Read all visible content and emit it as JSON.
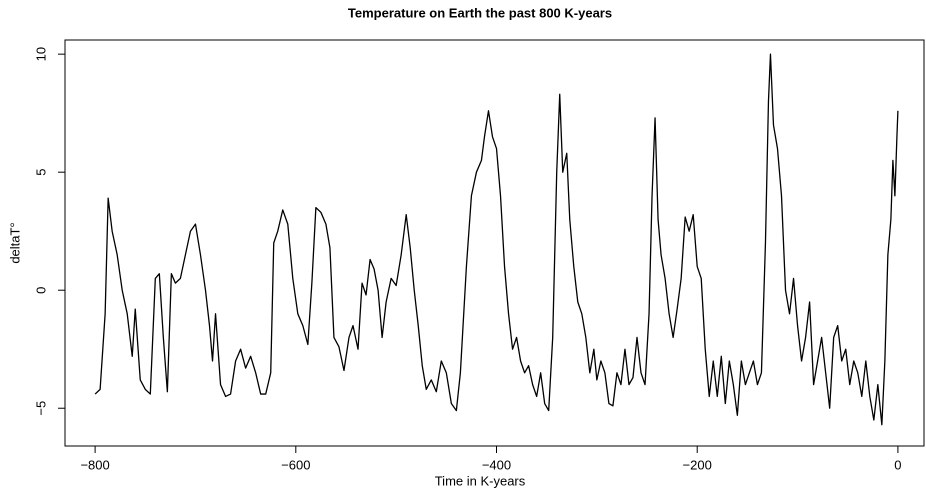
{
  "chart_data": {
    "type": "line",
    "title": "Temperature on Earth the past 800 K-years",
    "xlabel": "Time in K-years",
    "ylabel": "deltaT°",
    "color": "#000000",
    "xlim": [
      -830,
      26
    ],
    "ylim": [
      -6.6,
      10.6
    ],
    "xticks": [
      {
        "value": -800,
        "label": "−800"
      },
      {
        "value": -600,
        "label": "−600"
      },
      {
        "value": -400,
        "label": "−400"
      },
      {
        "value": -200,
        "label": "−200"
      },
      0
    ],
    "yticks": [
      {
        "value": -5,
        "label": "−5"
      },
      0,
      5,
      10
    ],
    "x": [
      -800,
      -795,
      -790,
      -787,
      -783,
      -778,
      -773,
      -768,
      -763,
      -760,
      -755,
      -750,
      -745,
      -740,
      -736,
      -732,
      -728,
      -724,
      -720,
      -715,
      -710,
      -705,
      -700,
      -695,
      -690,
      -686,
      -683,
      -680,
      -675,
      -670,
      -665,
      -660,
      -655,
      -650,
      -645,
      -640,
      -635,
      -630,
      -625,
      -622,
      -618,
      -613,
      -608,
      -603,
      -598,
      -593,
      -588,
      -584,
      -580,
      -575,
      -570,
      -566,
      -562,
      -557,
      -552,
      -547,
      -543,
      -538,
      -534,
      -530,
      -526,
      -522,
      -518,
      -514,
      -510,
      -505,
      -500,
      -495,
      -490,
      -486,
      -482,
      -478,
      -474,
      -470,
      -465,
      -460,
      -455,
      -450,
      -445,
      -440,
      -436,
      -430,
      -425,
      -420,
      -415,
      -412,
      -408,
      -404,
      -400,
      -396,
      -392,
      -388,
      -384,
      -380,
      -376,
      -372,
      -368,
      -364,
      -360,
      -356,
      -352,
      -348,
      -344,
      -340,
      -337,
      -334,
      -330,
      -327,
      -323,
      -319,
      -315,
      -311,
      -307,
      -303,
      -300,
      -296,
      -292,
      -288,
      -284,
      -280,
      -276,
      -272,
      -268,
      -264,
      -260,
      -256,
      -252,
      -248,
      -245,
      -242,
      -239,
      -236,
      -232,
      -228,
      -224,
      -220,
      -216,
      -212,
      -208,
      -204,
      -200,
      -196,
      -192,
      -188,
      -184,
      -180,
      -176,
      -172,
      -168,
      -164,
      -160,
      -156,
      -152,
      -148,
      -144,
      -140,
      -136,
      -132,
      -129,
      -127,
      -124,
      -120,
      -116,
      -112,
      -108,
      -104,
      -100,
      -96,
      -92,
      -88,
      -84,
      -80,
      -76,
      -72,
      -68,
      -64,
      -60,
      -56,
      -52,
      -48,
      -44,
      -40,
      -36,
      -32,
      -28,
      -24,
      -20,
      -16,
      -13,
      -10,
      -7,
      -5,
      -3,
      -1,
      0
    ],
    "values": [
      -4.4,
      -4.2,
      -1,
      3.9,
      2.5,
      1.5,
      0,
      -1,
      -2.8,
      -0.8,
      -3.8,
      -4.2,
      -4.4,
      0.5,
      0.7,
      -2,
      -4.3,
      0.7,
      0.3,
      0.5,
      1.5,
      2.5,
      2.8,
      1.5,
      0,
      -1.5,
      -3,
      -1,
      -4,
      -4.5,
      -4.4,
      -3,
      -2.5,
      -3.3,
      -2.8,
      -3.5,
      -4.4,
      -4.4,
      -3.5,
      2,
      2.5,
      3.4,
      2.8,
      0.5,
      -1,
      -1.5,
      -2.3,
      0.3,
      3.5,
      3.3,
      2.8,
      1.8,
      -2,
      -2.4,
      -3.4,
      -2,
      -1.5,
      -2.5,
      0.3,
      -0.2,
      1.3,
      0.9,
      0,
      -2,
      -0.5,
      0.5,
      0.2,
      1.5,
      3.2,
      1.8,
      0,
      -1.5,
      -3.2,
      -4.2,
      -3.8,
      -4.3,
      -3,
      -3.5,
      -4.8,
      -5.1,
      -3.5,
      1,
      4,
      5,
      5.5,
      6.5,
      7.6,
      6.5,
      6,
      4,
      1,
      -1,
      -2.5,
      -2,
      -3,
      -3.5,
      -3.2,
      -4,
      -4.5,
      -3.5,
      -4.8,
      -5.1,
      -2,
      5,
      8.3,
      5,
      5.8,
      3,
      1,
      -0.5,
      -1,
      -2,
      -3.5,
      -2.5,
      -3.8,
      -3,
      -3.5,
      -4.8,
      -4.9,
      -3.5,
      -4,
      -2.5,
      -4,
      -3.7,
      -2,
      -3.5,
      -4,
      -1,
      4,
      7.3,
      3,
      1.5,
      0.5,
      -1,
      -2,
      -0.8,
      0.5,
      3.1,
      2.5,
      3.2,
      1,
      0.5,
      -2.5,
      -4.5,
      -3,
      -4.5,
      -2.8,
      -4.8,
      -3,
      -4,
      -5.3,
      -3,
      -4,
      -3.5,
      -3,
      -4,
      -3.5,
      2,
      8,
      10,
      7,
      6,
      4,
      0,
      -1,
      0.5,
      -1.5,
      -3,
      -2,
      -0.5,
      -4,
      -3,
      -2,
      -3.5,
      -5,
      -2,
      -1.5,
      -3,
      -2.5,
      -4,
      -3,
      -3.5,
      -4.5,
      -3,
      -4.5,
      -5.5,
      -4,
      -5.7,
      -3,
      1.5,
      3,
      5.5,
      4,
      6.5,
      7.6
    ]
  }
}
